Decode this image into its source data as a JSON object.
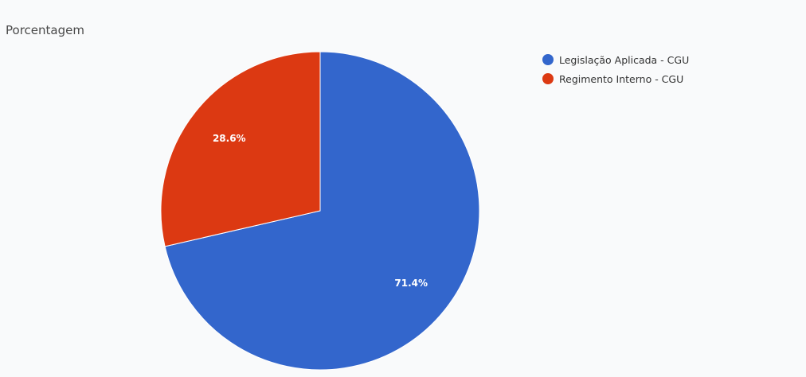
{
  "chart_data": {
    "type": "pie",
    "title": "Porcentagem",
    "categories": [
      "Legislação Aplicada - CGU",
      "Regimento Interno - CGU"
    ],
    "values": [
      71.4,
      28.6
    ],
    "data_labels": [
      "71.4%",
      "28.6%"
    ],
    "colors": [
      "#3366cc",
      "#dc3912"
    ],
    "legend_position": "top-right"
  },
  "legend": {
    "items": [
      {
        "label": "Legislação Aplicada - CGU",
        "color": "#3366cc"
      },
      {
        "label": "Regimento Interno - CGU",
        "color": "#dc3912"
      }
    ]
  }
}
